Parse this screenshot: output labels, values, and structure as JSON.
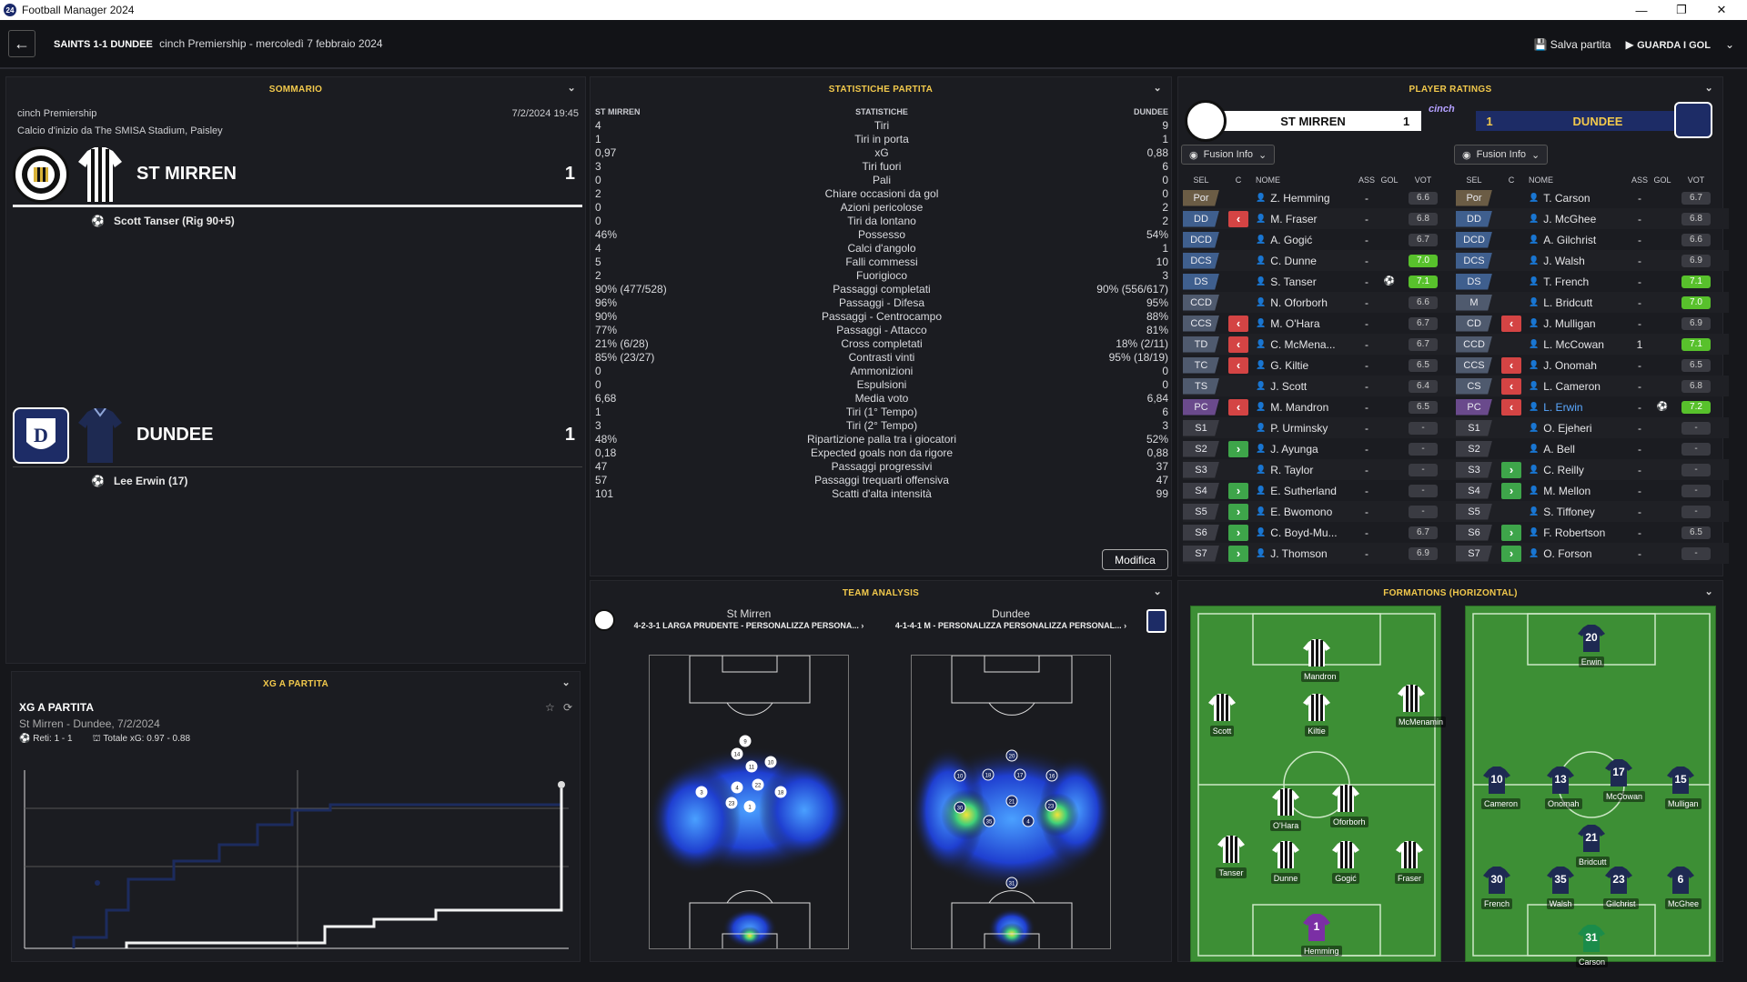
{
  "window": {
    "title": "Football Manager 2024",
    "app_icon": "24"
  },
  "topbar": {
    "match_title": "SAINTS 1-1 DUNDEE",
    "subtitle": "cinch Premiership - mercoledì 7 febbraio 2024",
    "save_label": "Salva partita",
    "watch_label": "GUARDA I GOL"
  },
  "summary": {
    "header": "SOMMARIO",
    "competition": "cinch Premiership",
    "datetime": "7/2/2024 19:45",
    "venue": "Calcio d'inizio da The SMISA Stadium, Paisley",
    "home": {
      "name": "ST MIRREN",
      "score": "1",
      "scorer": "Scott Tanser (Rig 90+5)"
    },
    "away": {
      "name": "DUNDEE",
      "score": "1",
      "scorer": "Lee Erwin (17)"
    }
  },
  "xg": {
    "header": "XG A PARTITA",
    "title": "XG A PARTITA",
    "subtitle": "St Mirren - Dundee, 7/2/2024",
    "goals": "Reti: 1 - 1",
    "total": "Totale xG: 0.97 - 0.88"
  },
  "stats": {
    "header": "STATISTICHE PARTITA",
    "col_home": "ST MIRREN",
    "col_mid": "STATISTICHE",
    "col_away": "DUNDEE",
    "edit_label": "Modifica",
    "rows": [
      {
        "h": "4",
        "s": "Tiri",
        "a": "9"
      },
      {
        "h": "1",
        "s": "Tiri in porta",
        "a": "1"
      },
      {
        "h": "0,97",
        "s": "xG",
        "a": "0,88"
      },
      {
        "h": "3",
        "s": "Tiri fuori",
        "a": "6"
      },
      {
        "h": "0",
        "s": "Pali",
        "a": "0"
      },
      {
        "h": "2",
        "s": "Chiare occasioni da gol",
        "a": "0"
      },
      {
        "h": "0",
        "s": "Azioni pericolose",
        "a": "2"
      },
      {
        "h": "0",
        "s": "Tiri da lontano",
        "a": "2"
      },
      {
        "h": "46%",
        "s": "Possesso",
        "a": "54%"
      },
      {
        "h": "4",
        "s": "Calci d'angolo",
        "a": "1"
      },
      {
        "h": "5",
        "s": "Falli commessi",
        "a": "10"
      },
      {
        "h": "2",
        "s": "Fuorigioco",
        "a": "3"
      },
      {
        "h": "90% (477/528)",
        "s": "Passaggi completati",
        "a": "90% (556/617)"
      },
      {
        "h": "96%",
        "s": "Passaggi - Difesa",
        "a": "95%"
      },
      {
        "h": "90%",
        "s": "Passaggi - Centrocampo",
        "a": "88%"
      },
      {
        "h": "77%",
        "s": "Passaggi - Attacco",
        "a": "81%"
      },
      {
        "h": "21% (6/28)",
        "s": "Cross completati",
        "a": "18% (2/11)"
      },
      {
        "h": "85% (23/27)",
        "s": "Contrasti vinti",
        "a": "95% (18/19)"
      },
      {
        "h": "0",
        "s": "Ammonizioni",
        "a": "0"
      },
      {
        "h": "0",
        "s": "Espulsioni",
        "a": "0"
      },
      {
        "h": "6,68",
        "s": "Media voto",
        "a": "6,84"
      },
      {
        "h": "1",
        "s": "Tiri (1° Tempo)",
        "a": "6"
      },
      {
        "h": "3",
        "s": "Tiri (2° Tempo)",
        "a": "3"
      },
      {
        "h": "48%",
        "s": "Ripartizione palla tra i giocatori",
        "a": "52%"
      },
      {
        "h": "0,18",
        "s": "Expected goals non da rigore",
        "a": "0,88"
      },
      {
        "h": "47",
        "s": "Passaggi progressivi",
        "a": "37"
      },
      {
        "h": "57",
        "s": "Passaggi trequarti offensiva",
        "a": "47"
      },
      {
        "h": "101",
        "s": "Scatti d'alta intensità",
        "a": "99"
      }
    ]
  },
  "team_analysis": {
    "header": "TEAM ANALYSIS",
    "home_name": "St Mirren",
    "home_tactic": "4-2-3-1 LARGA PRUDENTE - PERSONALIZZA PERSONA... ›",
    "away_name": "Dundee",
    "away_tactic": "4-1-4-1 M - PERSONALIZZA PERSONALIZZA PERSONAL... ›",
    "home_markers": [
      "9",
      "14",
      "11",
      "10",
      "3",
      "4",
      "22",
      "18",
      "23",
      "1"
    ],
    "away_markers": [
      "20",
      "10",
      "18",
      "17",
      "16",
      "30",
      "21",
      "35",
      "4",
      "23",
      "31"
    ]
  },
  "ratings": {
    "header": "PLAYER RATINGS",
    "home_name": "ST MIRREN",
    "home_score": "1",
    "away_score": "1",
    "away_name": "DUNDEE",
    "filter_label": "Fusion Info",
    "cols": {
      "sel": "SEL",
      "c": "C",
      "name": "NOME",
      "ass": "ASS",
      "gol": "GOL",
      "vot": "VOT"
    },
    "home": [
      {
        "pos": "Por",
        "sub": "",
        "name": "Z. Hemming",
        "ass": "-",
        "gol": "",
        "vot": "6.6",
        "hi": false
      },
      {
        "pos": "DD",
        "sub": "out",
        "name": "M. Fraser",
        "ass": "-",
        "gol": "",
        "vot": "6.8",
        "hi": false
      },
      {
        "pos": "DCD",
        "sub": "",
        "name": "A. Gogić",
        "ass": "-",
        "gol": "",
        "vot": "6.7",
        "hi": false
      },
      {
        "pos": "DCS",
        "sub": "",
        "name": "C. Dunne",
        "ass": "-",
        "gol": "",
        "vot": "7.0",
        "hi": true
      },
      {
        "pos": "DS",
        "sub": "",
        "name": "S. Tanser",
        "ass": "-",
        "gol": "⚽",
        "vot": "7.1",
        "hi": true
      },
      {
        "pos": "CCD",
        "sub": "",
        "name": "N. Oforborh",
        "ass": "-",
        "gol": "",
        "vot": "6.6",
        "hi": false
      },
      {
        "pos": "CCS",
        "sub": "out",
        "name": "M. O'Hara",
        "ass": "-",
        "gol": "",
        "vot": "6.7",
        "hi": false
      },
      {
        "pos": "TD",
        "sub": "out",
        "name": "C. McMena...",
        "ass": "-",
        "gol": "",
        "vot": "6.7",
        "hi": false
      },
      {
        "pos": "TC",
        "sub": "out",
        "name": "G. Kiltie",
        "ass": "-",
        "gol": "",
        "vot": "6.5",
        "hi": false
      },
      {
        "pos": "TS",
        "sub": "",
        "name": "J. Scott",
        "ass": "-",
        "gol": "",
        "vot": "6.4",
        "hi": false
      },
      {
        "pos": "PC",
        "sub": "out",
        "name": "M. Mandron",
        "ass": "-",
        "gol": "",
        "vot": "6.5",
        "hi": false
      },
      {
        "pos": "S1",
        "sub": "",
        "name": "P. Urminsky",
        "ass": "-",
        "gol": "",
        "vot": "-",
        "hi": false
      },
      {
        "pos": "S2",
        "sub": "in",
        "name": "J. Ayunga",
        "ass": "-",
        "gol": "",
        "vot": "-",
        "hi": false
      },
      {
        "pos": "S3",
        "sub": "",
        "name": "R. Taylor",
        "ass": "-",
        "gol": "",
        "vot": "-",
        "hi": false
      },
      {
        "pos": "S4",
        "sub": "in",
        "name": "E. Sutherland",
        "ass": "-",
        "gol": "",
        "vot": "-",
        "hi": false
      },
      {
        "pos": "S5",
        "sub": "in",
        "name": "E. Bwomono",
        "ass": "-",
        "gol": "",
        "vot": "-",
        "hi": false
      },
      {
        "pos": "S6",
        "sub": "in",
        "name": "C. Boyd-Mu...",
        "ass": "-",
        "gol": "",
        "vot": "6.7",
        "hi": false
      },
      {
        "pos": "S7",
        "sub": "in",
        "name": "J. Thomson",
        "ass": "-",
        "gol": "",
        "vot": "6.9",
        "hi": false
      }
    ],
    "away": [
      {
        "pos": "Por",
        "sub": "",
        "name": "T. Carson",
        "ass": "-",
        "gol": "",
        "vot": "6.7",
        "hi": false
      },
      {
        "pos": "DD",
        "sub": "",
        "name": "J. McGhee",
        "ass": "-",
        "gol": "",
        "vot": "6.8",
        "hi": false
      },
      {
        "pos": "DCD",
        "sub": "",
        "name": "A. Gilchrist",
        "ass": "-",
        "gol": "",
        "vot": "6.6",
        "hi": false
      },
      {
        "pos": "DCS",
        "sub": "",
        "name": "J. Walsh",
        "ass": "-",
        "gol": "",
        "vot": "6.9",
        "hi": false
      },
      {
        "pos": "DS",
        "sub": "",
        "name": "T. French",
        "ass": "-",
        "gol": "",
        "vot": "7.1",
        "hi": true
      },
      {
        "pos": "M",
        "sub": "",
        "name": "L. Bridcutt",
        "ass": "-",
        "gol": "",
        "vot": "7.0",
        "hi": true
      },
      {
        "pos": "CD",
        "sub": "out",
        "name": "J. Mulligan",
        "ass": "-",
        "gol": "",
        "vot": "6.9",
        "hi": false
      },
      {
        "pos": "CCD",
        "sub": "",
        "name": "L. McCowan",
        "ass": "1",
        "gol": "",
        "vot": "7.1",
        "hi": true
      },
      {
        "pos": "CCS",
        "sub": "out",
        "name": "J. Onomah",
        "ass": "-",
        "gol": "",
        "vot": "6.5",
        "hi": false
      },
      {
        "pos": "CS",
        "sub": "out",
        "name": "L. Cameron",
        "ass": "-",
        "gol": "",
        "vot": "6.8",
        "hi": false
      },
      {
        "pos": "PC",
        "sub": "out",
        "name": "L. Erwin",
        "ass": "-",
        "gol": "⚽",
        "vot": "7.2",
        "hi": true
      },
      {
        "pos": "S1",
        "sub": "",
        "name": "O. Ejeheri",
        "ass": "-",
        "gol": "",
        "vot": "-",
        "hi": false
      },
      {
        "pos": "S2",
        "sub": "",
        "name": "A. Bell",
        "ass": "-",
        "gol": "",
        "vot": "-",
        "hi": false
      },
      {
        "pos": "S3",
        "sub": "in",
        "name": "C. Reilly",
        "ass": "-",
        "gol": "",
        "vot": "-",
        "hi": false
      },
      {
        "pos": "S4",
        "sub": "in",
        "name": "M. Mellon",
        "ass": "-",
        "gol": "",
        "vot": "-",
        "hi": false
      },
      {
        "pos": "S5",
        "sub": "",
        "name": "S. Tiffoney",
        "ass": "-",
        "gol": "",
        "vot": "-",
        "hi": false
      },
      {
        "pos": "S6",
        "sub": "in",
        "name": "F. Robertson",
        "ass": "-",
        "gol": "",
        "vot": "6.5",
        "hi": false
      },
      {
        "pos": "S7",
        "sub": "in",
        "name": "O. Forson",
        "ass": "-",
        "gol": "",
        "vot": "-",
        "hi": false
      }
    ]
  },
  "formations": {
    "header": "FORMATIONS (HORIZONTAL)",
    "home": [
      {
        "name": "Mandron",
        "num": ""
      },
      {
        "name": "Scott",
        "num": ""
      },
      {
        "name": "Kiltie",
        "num": ""
      },
      {
        "name": "McMenamin",
        "num": ""
      },
      {
        "name": "O'Hara",
        "num": ""
      },
      {
        "name": "Oforborh",
        "num": ""
      },
      {
        "name": "Tanser",
        "num": ""
      },
      {
        "name": "Dunne",
        "num": ""
      },
      {
        "name": "Gogić",
        "num": ""
      },
      {
        "name": "Fraser",
        "num": ""
      },
      {
        "name": "Hemming",
        "num": "1"
      }
    ],
    "away": [
      {
        "name": "Erwin",
        "num": "20"
      },
      {
        "name": "Cameron",
        "num": "10"
      },
      {
        "name": "Onomah",
        "num": "13"
      },
      {
        "name": "McCowan",
        "num": "17"
      },
      {
        "name": "Mulligan",
        "num": "15"
      },
      {
        "name": "Bridcutt",
        "num": "21"
      },
      {
        "name": "French",
        "num": "30"
      },
      {
        "name": "Walsh",
        "num": "35"
      },
      {
        "name": "Gilchrist",
        "num": "23"
      },
      {
        "name": "McGhee",
        "num": "6"
      },
      {
        "name": "Carson",
        "num": "31"
      }
    ]
  },
  "colors": {
    "accent": "#f2c94c",
    "high_rating": "#58c12c",
    "sub_out": "#d44444",
    "sub_in": "#3ea54a",
    "pitch": "#3d8f35"
  }
}
